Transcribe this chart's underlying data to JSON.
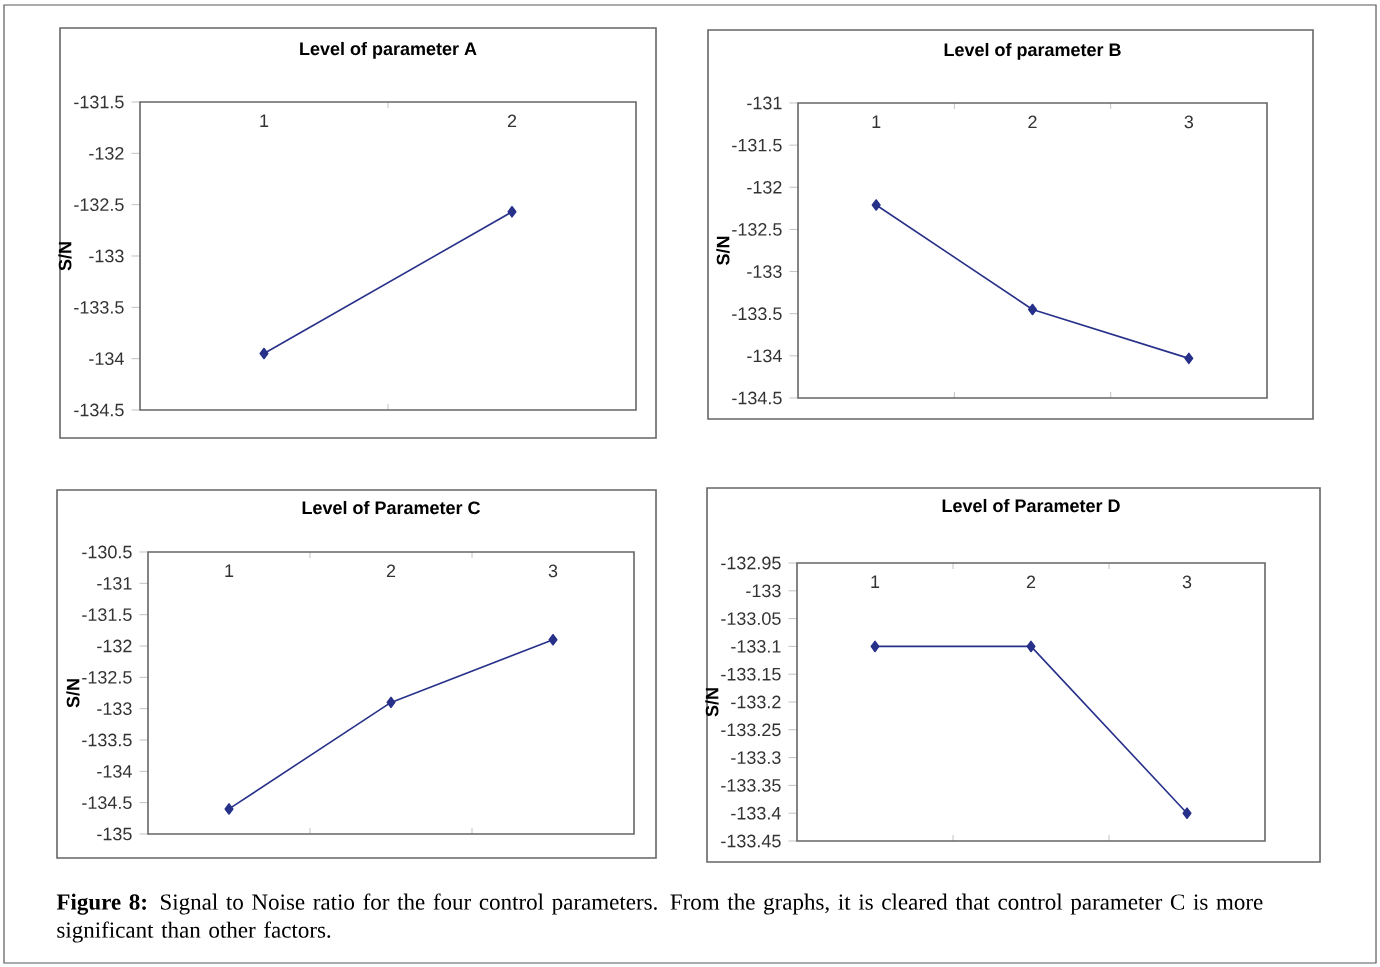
{
  "chart_data": [
    {
      "type": "line",
      "title": "Level of parameter A",
      "ylabel": "S/N",
      "categories": [
        "1",
        "2"
      ],
      "values": [
        -133.95,
        -132.57
      ],
      "color": "#27318a",
      "marker": "diamond",
      "line_style": "solid",
      "ylim": [
        -134.5,
        -131.5
      ],
      "yticks": [
        -131.5,
        -132,
        -132.5,
        -133,
        -133.5,
        -134,
        -134.5
      ]
    },
    {
      "type": "line",
      "title": "Level of parameter B",
      "ylabel": "S/N",
      "categories": [
        "1",
        "2",
        "3"
      ],
      "values": [
        -132.21,
        -133.45,
        -134.03
      ],
      "color": "#27318a",
      "marker": "diamond",
      "line_style": "solid",
      "ylim": [
        -134.5,
        -131
      ],
      "yticks": [
        -131,
        -131.5,
        -132,
        -132.5,
        -133,
        -133.5,
        -134,
        -134.5
      ]
    },
    {
      "type": "line",
      "title": "Level of Parameter C",
      "ylabel": "S/N",
      "categories": [
        "1",
        "2",
        "3"
      ],
      "values": [
        -134.6,
        -132.9,
        -131.9
      ],
      "color": "#27318a",
      "marker": "diamond",
      "line_style": "solid",
      "ylim": [
        -135,
        -130.5
      ],
      "yticks": [
        -130.5,
        -131,
        -131.5,
        -132,
        -132.5,
        -133,
        -133.5,
        -134,
        -134.5,
        -135
      ]
    },
    {
      "type": "line",
      "title": "Level of Parameter D",
      "ylabel": "S/N",
      "categories": [
        "1",
        "2",
        "3"
      ],
      "values": [
        -133.1,
        -133.1,
        -133.4
      ],
      "color": "#27318a",
      "marker": "diamond",
      "line_style": "solid",
      "ylim": [
        -133.45,
        -132.95
      ],
      "yticks": [
        -132.95,
        -133,
        -133.05,
        -133.1,
        -133.15,
        -133.2,
        -133.25,
        -133.3,
        -133.35,
        -133.4,
        -133.45
      ],
      "annotations": [
        "**Figure 8:** Signal to Noise ratio for the four control parameters. From the graphs, it is cleared that control parameter C is more significant than other factors."
      ]
    }
  ]
}
